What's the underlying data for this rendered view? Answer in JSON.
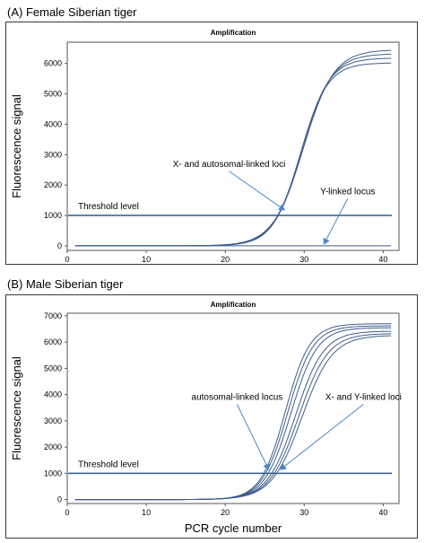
{
  "panels": [
    {
      "label": "(A) Female Siberian tiger",
      "chart_data": {
        "type": "line",
        "title": "Amplification",
        "xlabel": "PCR cycle number",
        "ylabel": "Fluorescence signal",
        "xlim": [
          0,
          42
        ],
        "ylim": [
          -150,
          6700
        ],
        "xticks": [
          0,
          10,
          20,
          30,
          40
        ],
        "yticks": [
          0,
          1000,
          2000,
          3000,
          4000,
          5000,
          6000
        ],
        "grid": false,
        "threshold": {
          "label": "Threshold level",
          "value": 1000
        },
        "series": [
          {
            "min": 0,
            "max": 6450,
            "mid": 29.9,
            "k": 0.52
          },
          {
            "min": 0,
            "max": 6320,
            "mid": 29.8,
            "k": 0.54
          },
          {
            "min": 0,
            "max": 6180,
            "mid": 29.6,
            "k": 0.56
          },
          {
            "min": 0,
            "max": 6020,
            "mid": 29.5,
            "k": 0.58
          },
          {
            "min": 0,
            "max": 0,
            "mid": 30,
            "k": 0.5
          }
        ],
        "annotations": [
          {
            "text": "X- and autosomal-linked  loci",
            "tx": 20.5,
            "ty": 2600,
            "ax": 27.5,
            "ay": 1180
          },
          {
            "text": "Y-linked locus",
            "tx": 35.5,
            "ty": 1700,
            "ax": 32.5,
            "ay": 60
          }
        ]
      }
    },
    {
      "label": "(B) Male Siberian tiger",
      "chart_data": {
        "type": "line",
        "title": "Amplification",
        "xlabel": "PCR cycle number",
        "ylabel": "Fluorescence signal",
        "xlim": [
          0,
          42
        ],
        "ylim": [
          -150,
          7100
        ],
        "xticks": [
          0,
          10,
          20,
          30,
          40
        ],
        "yticks": [
          0,
          1000,
          2000,
          3000,
          4000,
          5000,
          6000,
          7000
        ],
        "grid": false,
        "threshold": {
          "label": "Threshold level",
          "value": 1000
        },
        "series": [
          {
            "min": 0,
            "max": 6700,
            "mid": 27.6,
            "k": 0.64
          },
          {
            "min": 0,
            "max": 6620,
            "mid": 27.9,
            "k": 0.62
          },
          {
            "min": 0,
            "max": 6550,
            "mid": 28.3,
            "k": 0.6
          },
          {
            "min": 0,
            "max": 6420,
            "mid": 28.9,
            "k": 0.56
          },
          {
            "min": 0,
            "max": 6330,
            "mid": 29.3,
            "k": 0.54
          },
          {
            "min": 0,
            "max": 6260,
            "mid": 29.7,
            "k": 0.52
          }
        ],
        "annotations": [
          {
            "text": "autosomal-linked locus",
            "tx": 21.5,
            "ty": 3800,
            "ax": 25.5,
            "ay": 1150
          },
          {
            "text": "X- and Y-linked loci",
            "tx": 37.5,
            "ty": 3800,
            "ax": 27.0,
            "ay": 1150
          }
        ]
      }
    }
  ],
  "colors": {
    "curve": "#3d5e8c",
    "threshold": "#2d5c88",
    "arrow": "#4a86c5",
    "frame": "#3a3a3a"
  }
}
